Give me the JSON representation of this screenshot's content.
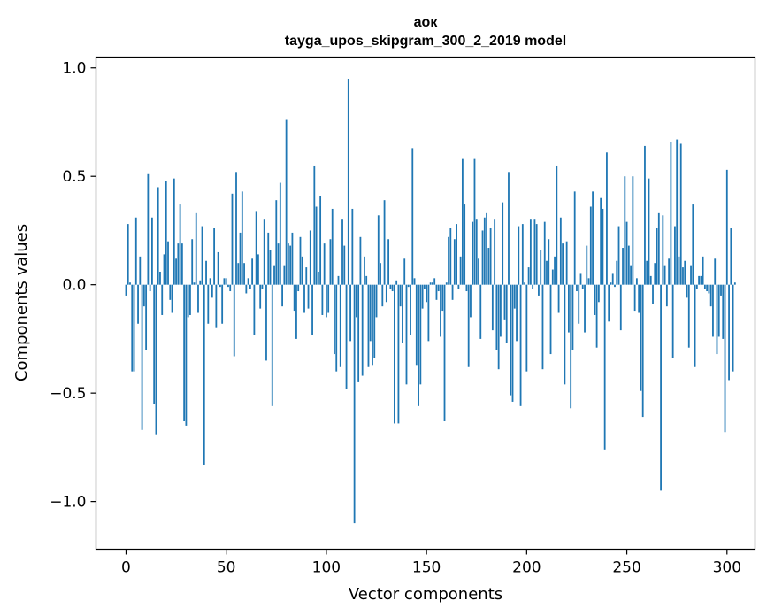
{
  "chart_data": {
    "type": "bar",
    "title_line1": "аок",
    "title_line2": "tayga_upos_skipgram_300_2_2019 model",
    "xlabel": "Vector components",
    "ylabel": "Components values",
    "xlim": [
      -15,
      314
    ],
    "ylim": [
      -1.22,
      1.05
    ],
    "x_ticks": [
      0,
      50,
      100,
      150,
      200,
      250,
      300
    ],
    "y_ticks": [
      -1.0,
      -0.5,
      0.0,
      0.5,
      1.0
    ],
    "x_tick_labels": [
      "0",
      "50",
      "100",
      "150",
      "200",
      "250",
      "300"
    ],
    "y_tick_labels": [
      "−1.0",
      "−0.5",
      "0.0",
      "0.5",
      "1.0"
    ],
    "bar_color": "#1f77b4",
    "values": [
      -0.05,
      0.28,
      0.01,
      -0.4,
      -0.4,
      0.31,
      -0.18,
      0.13,
      -0.67,
      -0.1,
      -0.3,
      0.51,
      -0.03,
      0.31,
      -0.55,
      -0.69,
      0.45,
      0.06,
      -0.14,
      0.14,
      0.48,
      0.2,
      -0.07,
      -0.13,
      0.49,
      0.12,
      0.19,
      0.37,
      0.19,
      -0.63,
      -0.65,
      -0.15,
      -0.14,
      0.21,
      0.01,
      0.33,
      -0.13,
      0.02,
      0.27,
      -0.83,
      0.11,
      -0.18,
      0.03,
      -0.06,
      0.26,
      -0.2,
      0.15,
      -0.01,
      -0.18,
      0.03,
      0.03,
      -0.01,
      -0.03,
      0.42,
      -0.33,
      0.52,
      0.1,
      0.24,
      0.43,
      0.1,
      -0.04,
      0.03,
      -0.02,
      0.12,
      -0.23,
      0.34,
      0.14,
      -0.11,
      -0.02,
      0.3,
      -0.35,
      0.24,
      0.16,
      -0.56,
      0.09,
      0.39,
      0.19,
      0.47,
      -0.1,
      0.09,
      0.76,
      0.19,
      0.18,
      0.24,
      -0.12,
      -0.25,
      -0.03,
      0.22,
      0.13,
      -0.13,
      0.08,
      -0.11,
      0.25,
      -0.23,
      0.55,
      0.36,
      0.06,
      0.41,
      -0.14,
      0.19,
      -0.15,
      -0.13,
      0.21,
      0.35,
      -0.32,
      -0.4,
      0.04,
      -0.38,
      0.3,
      0.18,
      -0.48,
      0.95,
      -0.26,
      0.35,
      -1.1,
      -0.15,
      -0.45,
      0.22,
      -0.42,
      0.13,
      0.04,
      -0.38,
      -0.26,
      -0.37,
      -0.34,
      -0.15,
      0.32,
      0.1,
      -0.1,
      0.39,
      -0.08,
      0.21,
      -0.02,
      -0.03,
      -0.64,
      0.02,
      -0.64,
      -0.1,
      -0.27,
      0.12,
      -0.46,
      -0.01,
      -0.23,
      0.63,
      0.03,
      -0.37,
      -0.56,
      -0.46,
      -0.11,
      -0.02,
      -0.08,
      -0.26,
      0.01,
      0.01,
      0.03,
      -0.07,
      -0.03,
      -0.24,
      -0.12,
      -0.63,
      0.01,
      0.22,
      0.26,
      -0.07,
      0.21,
      0.28,
      -0.02,
      0.13,
      0.58,
      0.37,
      -0.03,
      -0.38,
      -0.15,
      0.29,
      0.58,
      0.3,
      0.12,
      -0.25,
      0.25,
      0.31,
      0.33,
      0.17,
      0.26,
      -0.21,
      0.3,
      -0.3,
      -0.39,
      -0.24,
      0.38,
      -0.16,
      -0.27,
      0.52,
      -0.51,
      -0.54,
      -0.11,
      -0.26,
      0.27,
      -0.56,
      0.28,
      0.01,
      -0.4,
      0.08,
      0.3,
      -0.02,
      0.3,
      0.28,
      -0.05,
      0.16,
      -0.39,
      0.29,
      0.11,
      0.21,
      -0.32,
      0.07,
      0.13,
      0.55,
      -0.13,
      0.31,
      0.19,
      -0.46,
      0.2,
      -0.22,
      -0.57,
      -0.3,
      0.43,
      -0.03,
      -0.18,
      0.05,
      -0.02,
      -0.22,
      0.18,
      0.03,
      0.36,
      0.43,
      -0.14,
      -0.29,
      -0.08,
      0.4,
      0.35,
      -0.76,
      0.61,
      -0.17,
      0.01,
      0.05,
      -0.01,
      0.11,
      0.27,
      -0.21,
      0.17,
      0.5,
      0.29,
      0.18,
      0.09,
      0.5,
      -0.12,
      0.03,
      -0.13,
      -0.49,
      -0.61,
      0.64,
      0.11,
      0.49,
      0.04,
      -0.09,
      0.1,
      0.26,
      0.33,
      -0.95,
      0.32,
      0.09,
      -0.1,
      0.12,
      0.66,
      -0.34,
      0.27,
      0.67,
      0.13,
      0.65,
      0.08,
      0.11,
      -0.06,
      -0.29,
      0.09,
      0.37,
      -0.38,
      -0.02,
      0.04,
      0.04,
      0.13,
      -0.02,
      -0.03,
      -0.04,
      -0.1,
      -0.24,
      0.12,
      -0.32,
      -0.24,
      -0.05,
      -0.25,
      -0.68,
      0.53,
      -0.44,
      0.26,
      -0.4,
      0.01
    ]
  }
}
